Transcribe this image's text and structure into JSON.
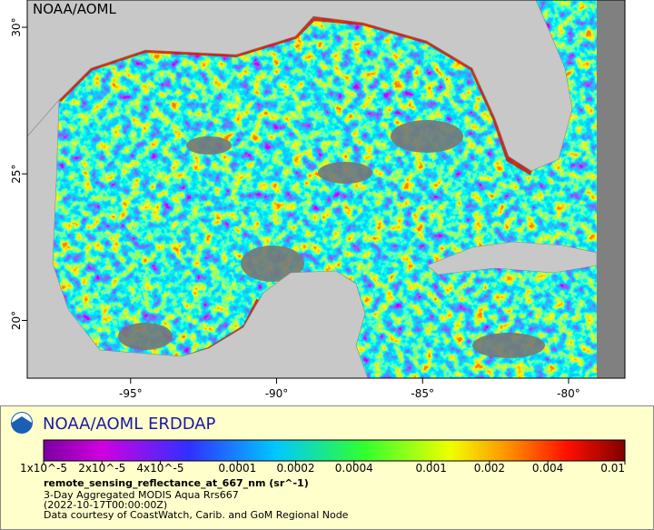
{
  "map": {
    "title": "NOAA/AOML",
    "xlim": [
      -98.54,
      -78.07
    ],
    "ylim": [
      18.03,
      30.93
    ],
    "xticks": [
      {
        "value": -95,
        "label": "-95°"
      },
      {
        "value": -90,
        "label": "-90°"
      },
      {
        "value": -85,
        "label": "-85°"
      },
      {
        "value": -80,
        "label": "-80°"
      }
    ],
    "yticks": [
      {
        "value": 20,
        "label": "20°"
      },
      {
        "value": 25,
        "label": "25°"
      },
      {
        "value": 30,
        "label": "30°"
      }
    ]
  },
  "footer": {
    "brand": "NOAA/AOML ERDDAP",
    "colorbar": {
      "scale": "log",
      "lim": [
        1e-05,
        0.01
      ],
      "ticks": [
        {
          "value": 1e-05,
          "label": "1x10^-5"
        },
        {
          "value": 2e-05,
          "label": "2x10^-5"
        },
        {
          "value": 4e-05,
          "label": "4x10^-5"
        },
        0.0001,
        0.0002,
        0.0004,
        0.001,
        0.002,
        0.004,
        0.01
      ]
    },
    "variable": "remote_sensing_reflectance_at_667_nm (sr^-1)",
    "lines": [
      "3-Day Aggregated MODIS Aqua Rrs667",
      "(2022-10-17T00:00:00Z)",
      "Data courtesy of CoastWatch, Carib. and GoM Regional Node"
    ]
  }
}
